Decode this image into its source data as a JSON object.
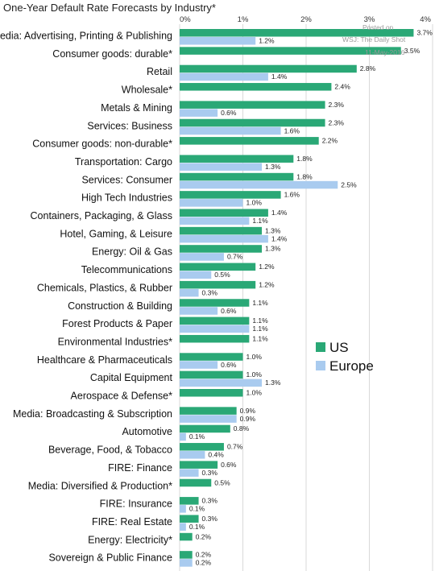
{
  "chart_data": {
    "type": "bar",
    "orientation": "horizontal",
    "title": "One-Year Default Rate Forecasts by Industry*",
    "x_ticks": [
      "0%",
      "1%",
      "2%",
      "3%",
      "4%"
    ],
    "xlim": [
      0,
      4
    ],
    "grid": true,
    "legend_position": "right",
    "categories": [
      "Media: Advertising, Printing & Publishing",
      "Consumer goods: durable*",
      "Retail",
      "Wholesale*",
      "Metals & Mining",
      "Services: Business",
      "Consumer goods: non-durable*",
      "Transportation: Cargo",
      "Services: Consumer",
      "High Tech Industries",
      "Containers, Packaging, & Glass",
      "Hotel, Gaming, & Leisure",
      "Energy: Oil & Gas",
      "Telecommunications",
      "Chemicals, Plastics, & Rubber",
      "Construction & Building",
      "Forest Products & Paper",
      "Environmental Industries*",
      "Healthcare & Pharmaceuticals",
      "Capital Equipment",
      "Aerospace & Defense*",
      "Media: Broadcasting & Subscription",
      "Automotive",
      "Beverage, Food, & Tobacco",
      "FIRE: Finance",
      "Media: Diversified & Production*",
      "FIRE: Insurance",
      "FIRE: Real Estate",
      "Energy: Electricity*",
      "Sovereign & Public Finance"
    ],
    "series": [
      {
        "name": "US",
        "color": "#2aa876",
        "values": [
          3.7,
          3.5,
          2.8,
          2.4,
          2.3,
          2.3,
          2.2,
          1.8,
          1.8,
          1.6,
          1.4,
          1.3,
          1.3,
          1.2,
          1.2,
          1.1,
          1.1,
          1.1,
          1.0,
          1.0,
          1.0,
          0.9,
          0.8,
          0.7,
          0.6,
          0.5,
          0.3,
          0.3,
          0.2,
          0.2
        ],
        "labels": [
          "3.7%",
          "3.5%",
          "2.8%",
          "2.4%",
          "2.3%",
          "2.3%",
          "2.2%",
          "1.8%",
          "1.8%",
          "1.6%",
          "1.4%",
          "1.3%",
          "1.3%",
          "1.2%",
          "1.2%",
          "1.1%",
          "1.1%",
          "1.1%",
          "1.0%",
          "1.0%",
          "1.0%",
          "0.9%",
          "0.8%",
          "0.7%",
          "0.6%",
          "0.5%",
          "0.3%",
          "0.3%",
          "0.2%",
          "0.2%"
        ]
      },
      {
        "name": "Europe",
        "color": "#a9cbef",
        "values": [
          1.2,
          null,
          1.4,
          null,
          0.6,
          1.6,
          null,
          1.3,
          2.5,
          1.0,
          1.1,
          1.4,
          0.7,
          0.5,
          0.3,
          0.6,
          1.1,
          null,
          0.6,
          1.3,
          null,
          0.9,
          0.1,
          0.4,
          0.3,
          null,
          0.1,
          0.1,
          null,
          0.2
        ],
        "labels": [
          "1.2%",
          "",
          "1.4%",
          "",
          "0.6%",
          "1.6%",
          "",
          "1.3%",
          "2.5%",
          "1.0%",
          "1.1%",
          "1.4%",
          "0.7%",
          "0.5%",
          "0.3%",
          "0.6%",
          "1.1%",
          "",
          "0.6%",
          "1.3%",
          "",
          "0.9%",
          "0.1%",
          "0.4%",
          "0.3%",
          "",
          "0.1%",
          "0.1%",
          "",
          "0.2%"
        ]
      }
    ],
    "legend": [
      "US",
      "Europe"
    ],
    "watermark": [
      "Posted on",
      "WSJ: The Daily Shot",
      "11-May-2016"
    ]
  }
}
